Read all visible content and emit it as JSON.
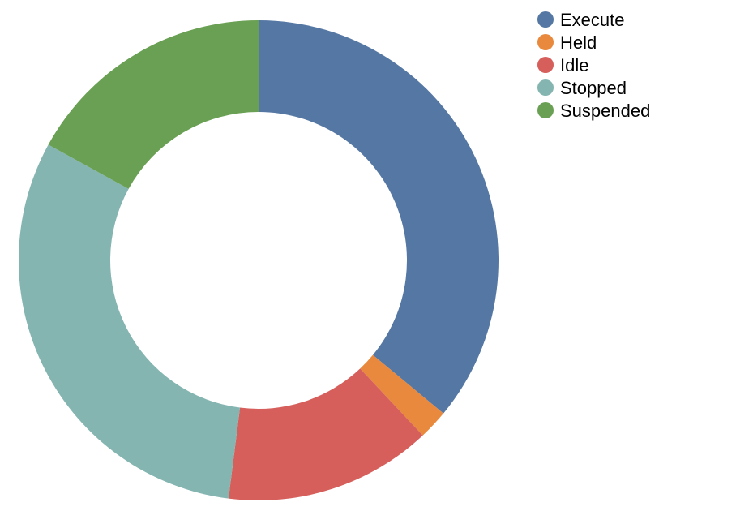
{
  "chart_data": {
    "type": "pie",
    "donut": true,
    "title": "",
    "categories": [
      "Execute",
      "Held",
      "Idle",
      "Stopped",
      "Suspended"
    ],
    "values": [
      36,
      2,
      14,
      31,
      17
    ],
    "unit": "percent of total (estimated)",
    "colors": [
      "#5577a3",
      "#e8893d",
      "#d65f5b",
      "#84b5b1",
      "#6aa053"
    ],
    "legend": {
      "placement": "top-right",
      "items": [
        {
          "label": "Execute",
          "color": "#5577a3"
        },
        {
          "label": "Held",
          "color": "#e8893d"
        },
        {
          "label": "Idle",
          "color": "#d65f5b"
        },
        {
          "label": "Stopped",
          "color": "#84b5b1"
        },
        {
          "label": "Suspended",
          "color": "#6aa053"
        }
      ]
    },
    "start": "12 o'clock",
    "direction": "clockwise"
  }
}
